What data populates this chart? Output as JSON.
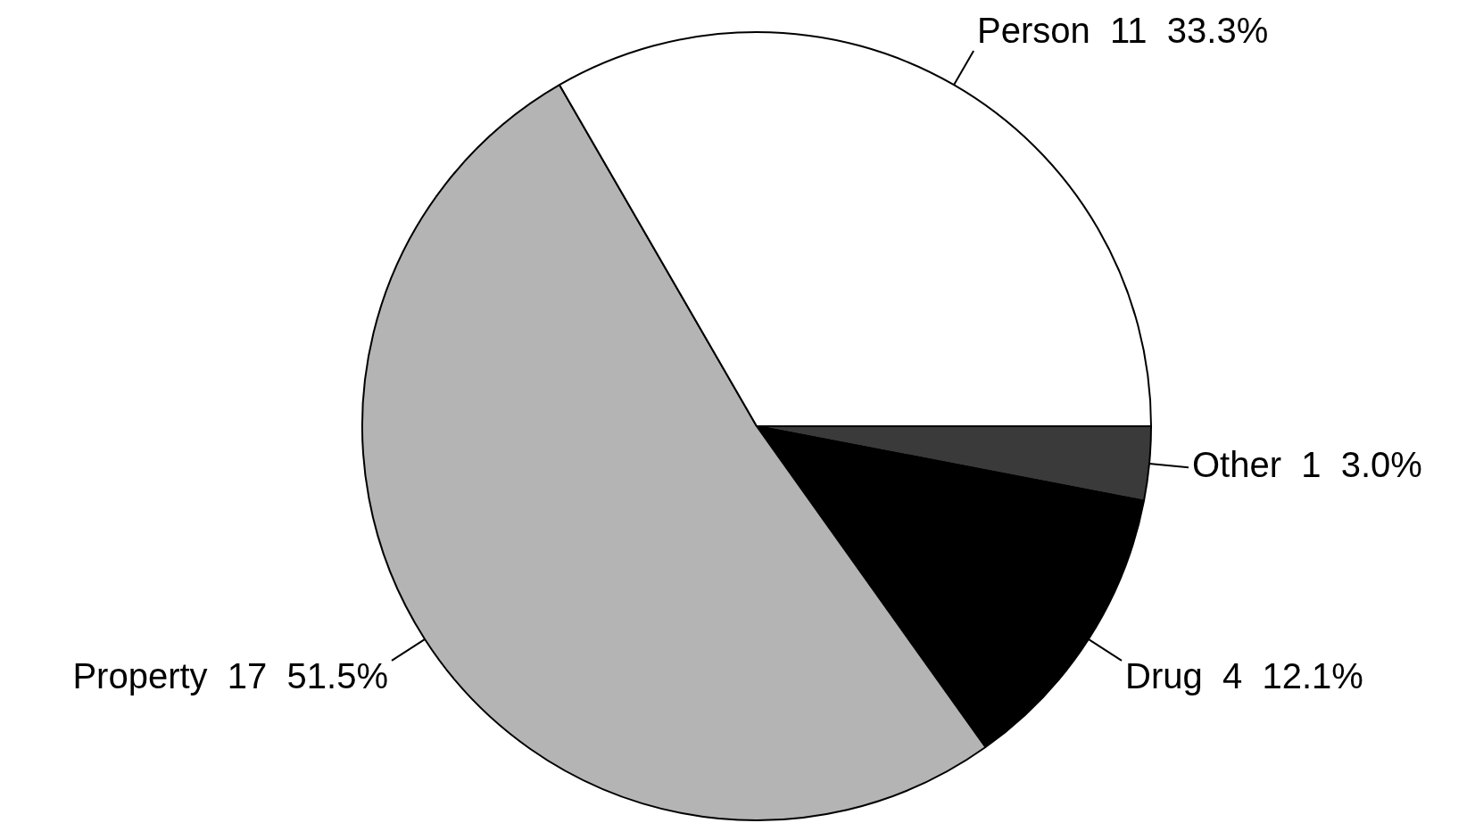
{
  "chart_data": {
    "type": "pie",
    "categories": [
      "Other",
      "Drug",
      "Property",
      "Person"
    ],
    "values": [
      1,
      4,
      17,
      11
    ],
    "value_labels": [
      "1  3.0%",
      "4  12.1%",
      "17  51.5%",
      "11  33.3%"
    ],
    "colors": [
      "#3a3a3a",
      "#000000",
      "#b4b4b4",
      "#ffffff"
    ],
    "legend": false
  }
}
